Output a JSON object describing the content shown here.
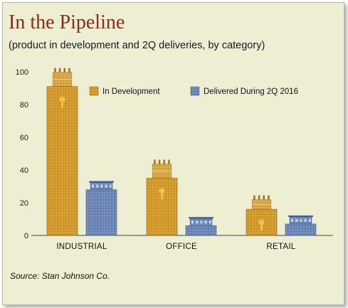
{
  "title": "In the Pipeline",
  "subtitle": "(product in development and 2Q deliveries, by category)",
  "source": "Source: Stan Johnson Co.",
  "colors": {
    "background": "#eeeed3",
    "title": "#8b2a1c",
    "in_development": "#d39a2e",
    "delivered": "#6e88b8"
  },
  "icons": {
    "in_development_bar": "construction-building-icon",
    "delivered_bar": "finished-building-icon"
  },
  "chart_data": {
    "type": "bar",
    "title": "In the Pipeline",
    "subtitle": "(product in development and 2Q deliveries, by category)",
    "categories": [
      "INDUSTRIAL",
      "OFFICE",
      "RETAIL"
    ],
    "series": [
      {
        "name": "In Development",
        "values": [
          91,
          35,
          16
        ]
      },
      {
        "name": "Delivered During 2Q 2016",
        "values": [
          28,
          6,
          7
        ]
      }
    ],
    "ylim": [
      0,
      100
    ],
    "yticks": [
      "0",
      "20",
      "40",
      "60",
      "80",
      "100"
    ],
    "xlabel": "",
    "ylabel": "",
    "grid": false,
    "legend": "top-right"
  }
}
